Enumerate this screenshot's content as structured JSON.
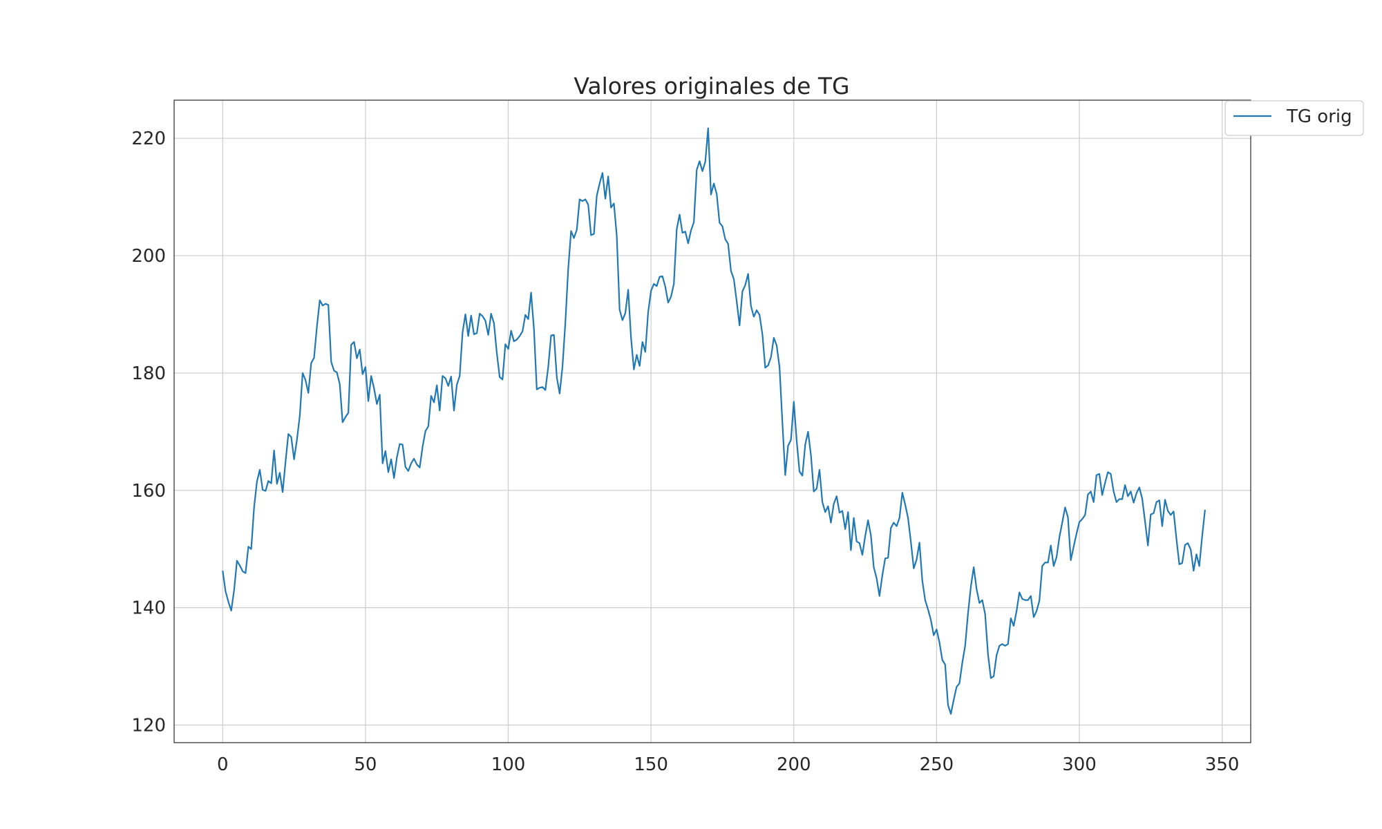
{
  "chart_data": {
    "type": "line",
    "title": "Valores originales de TG",
    "xlabel": "",
    "ylabel": "",
    "xlim": [
      -17,
      360
    ],
    "ylim": [
      117,
      226.5
    ],
    "xticks": [
      0,
      50,
      100,
      150,
      200,
      250,
      300,
      350
    ],
    "yticks": [
      120,
      140,
      160,
      180,
      200,
      220
    ],
    "grid": true,
    "legend_position": "top-right outside",
    "colors": {
      "line": "#1f77b4",
      "grid": "#cccccc",
      "text": "#262626"
    },
    "series": [
      {
        "name": "TG orig",
        "x_start": 0,
        "x_step": 1,
        "values": [
          146.3,
          142.8,
          141.0,
          139.5,
          143.0,
          148.0,
          147.2,
          146.2,
          145.9,
          150.4,
          150.0,
          157.1,
          161.5,
          163.5,
          160.1,
          159.9,
          161.6,
          161.2,
          166.8,
          161.1,
          163.0,
          159.7,
          164.8,
          169.6,
          169.1,
          165.3,
          168.6,
          172.7,
          180.0,
          178.8,
          176.6,
          181.7,
          182.6,
          187.9,
          192.4,
          191.5,
          191.8,
          191.6,
          181.9,
          180.4,
          180.1,
          178.1,
          171.6,
          172.5,
          173.2,
          184.8,
          185.3,
          182.5,
          184.0,
          179.8,
          181.0,
          175.2,
          179.5,
          177.4,
          174.7,
          176.3,
          164.6,
          166.7,
          163.1,
          165.3,
          162.1,
          165.6,
          167.9,
          167.8,
          164.0,
          163.3,
          164.6,
          165.4,
          164.4,
          163.9,
          167.4,
          170.1,
          170.9,
          176.1,
          175.0,
          177.9,
          173.6,
          179.5,
          179.1,
          177.8,
          179.4,
          173.6,
          178.0,
          179.5,
          186.9,
          190.0,
          186.3,
          189.8,
          186.6,
          186.8,
          190.1,
          189.7,
          188.9,
          186.5,
          190.1,
          188.5,
          183.4,
          179.3,
          178.9,
          184.9,
          184.1,
          187.2,
          185.4,
          185.7,
          186.3,
          187.1,
          189.9,
          189.2,
          193.7,
          187.5,
          177.2,
          177.5,
          177.6,
          177.1,
          181.0,
          186.4,
          186.5,
          179.3,
          176.5,
          181.1,
          188.6,
          197.7,
          204.2,
          203.0,
          204.4,
          209.6,
          209.3,
          209.6,
          208.7,
          203.5,
          203.7,
          210.2,
          212.3,
          214.1,
          209.7,
          213.5,
          208.2,
          208.9,
          203.4,
          190.8,
          189.0,
          190.2,
          194.2,
          186.0,
          180.6,
          183.1,
          181.2,
          185.3,
          183.6,
          190.4,
          194.0,
          195.2,
          194.8,
          196.4,
          196.5,
          194.7,
          192.0,
          193.0,
          195.2,
          204.5,
          207.0,
          203.9,
          204.1,
          202.1,
          204.3,
          205.7,
          214.6,
          216.1,
          214.4,
          216.0,
          221.7,
          210.4,
          212.3,
          210.5,
          205.6,
          205.0,
          202.8,
          202.0,
          197.4,
          196.0,
          192.2,
          188.1,
          193.9,
          195.0,
          196.9,
          191.4,
          189.6,
          190.7,
          189.9,
          186.6,
          180.9,
          181.3,
          182.7,
          186.0,
          184.7,
          181.0,
          171.6,
          162.6,
          167.6,
          168.6,
          175.1,
          168.5,
          163.2,
          162.5,
          167.8,
          170.0,
          166.0,
          159.8,
          160.3,
          163.5,
          158.0,
          156.3,
          157.3,
          154.5,
          157.7,
          159.0,
          156.2,
          156.5,
          153.4,
          156.3,
          149.8,
          155.3,
          151.3,
          151.0,
          149.0,
          152.2,
          154.9,
          152.3,
          146.9,
          145.0,
          142.0,
          145.5,
          148.4,
          148.5,
          153.6,
          154.5,
          153.9,
          155.3,
          159.6,
          157.6,
          155.3,
          151.2,
          146.7,
          148.2,
          151.1,
          144.6,
          141.3,
          139.7,
          137.9,
          135.3,
          136.3,
          134.1,
          131.1,
          130.3,
          123.4,
          121.9,
          124.3,
          126.5,
          127.1,
          130.6,
          133.5,
          139.0,
          143.6,
          146.9,
          143.2,
          140.8,
          141.3,
          138.9,
          132.1,
          128.0,
          128.3,
          131.9,
          133.5,
          133.8,
          133.5,
          133.8,
          138.2,
          136.9,
          139.4,
          142.6,
          141.5,
          141.3,
          141.3,
          142.0,
          138.4,
          139.4,
          141.2,
          147.1,
          147.7,
          147.7,
          150.6,
          147.1,
          148.6,
          152.0,
          154.5,
          157.1,
          155.4,
          148.1,
          150.4,
          152.6,
          154.6,
          155.1,
          155.8,
          159.3,
          159.8,
          158.0,
          162.6,
          162.8,
          159.2,
          161.3,
          163.1,
          162.8,
          159.8,
          158.0,
          158.5,
          158.5,
          160.9,
          159.0,
          159.8,
          157.9,
          159.5,
          160.5,
          158.6,
          154.7,
          150.6,
          155.9,
          156.1,
          158.0,
          158.3,
          153.9,
          158.4,
          156.5,
          155.8,
          156.4,
          151.7,
          147.4,
          147.6,
          150.7,
          151.0,
          149.9,
          146.3,
          149.1,
          147.1,
          152.2,
          156.7
        ]
      }
    ]
  }
}
